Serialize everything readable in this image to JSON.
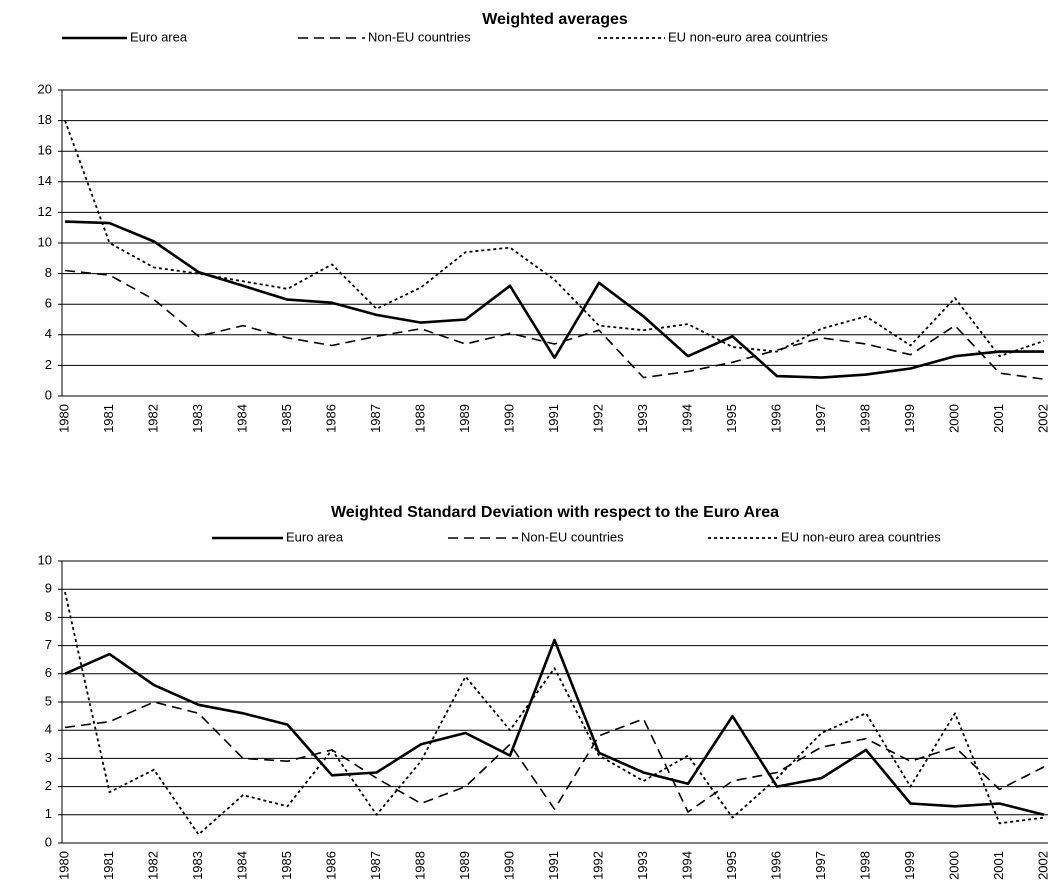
{
  "chart_data": [
    {
      "type": "line",
      "title": "Weighted averages",
      "categories": [
        "1980",
        "1981",
        "1982",
        "1983",
        "1984",
        "1985",
        "1986",
        "1987",
        "1988",
        "1989",
        "1990",
        "1991",
        "1992",
        "1993",
        "1994",
        "1995",
        "1996",
        "1997",
        "1998",
        "1999",
        "2000",
        "2001",
        "2002"
      ],
      "ylim": [
        0,
        20
      ],
      "yticks": [
        0,
        2,
        4,
        6,
        8,
        10,
        12,
        14,
        16,
        18,
        20
      ],
      "grid": true,
      "series": [
        {
          "name": "Euro area",
          "color": "#000000",
          "dash": "solid",
          "values": [
            11.4,
            11.3,
            10.1,
            8.1,
            7.2,
            6.3,
            6.1,
            5.3,
            4.8,
            5.0,
            7.2,
            2.5,
            7.4,
            5.2,
            2.6,
            3.9,
            1.3,
            1.2,
            1.4,
            1.8,
            2.6,
            2.9,
            2.9
          ]
        },
        {
          "name": "Non-EU countries",
          "color": "#000000",
          "dash": "dashed",
          "values": [
            8.2,
            7.9,
            6.3,
            3.9,
            4.6,
            3.8,
            3.3,
            3.9,
            4.4,
            3.4,
            4.1,
            3.4,
            4.3,
            1.2,
            1.6,
            2.2,
            3.0,
            3.8,
            3.4,
            2.7,
            4.6,
            1.5,
            1.1
          ]
        },
        {
          "name": "EU non-euro area countries",
          "color": "#000000",
          "dash": "dotted",
          "values": [
            18.0,
            10.0,
            8.4,
            8.0,
            7.5,
            7.0,
            8.6,
            5.7,
            7.1,
            9.4,
            9.7,
            7.6,
            4.6,
            4.3,
            4.7,
            3.2,
            2.9,
            4.4,
            5.2,
            3.3,
            6.4,
            2.6,
            3.6
          ]
        }
      ]
    },
    {
      "type": "line",
      "title": "Weighted Standard Deviation with respect to the Euro Area",
      "categories": [
        "1980",
        "1981",
        "1982",
        "1983",
        "1984",
        "1985",
        "1986",
        "1987",
        "1988",
        "1989",
        "1990",
        "1991",
        "1992",
        "1993",
        "1994",
        "1995",
        "1996",
        "1997",
        "1998",
        "1999",
        "2000",
        "2001",
        "2002"
      ],
      "ylim": [
        0,
        10
      ],
      "yticks": [
        0,
        1,
        2,
        3,
        4,
        5,
        6,
        7,
        8,
        9,
        10
      ],
      "grid": true,
      "series": [
        {
          "name": "Euro area",
          "color": "#000000",
          "dash": "solid",
          "values": [
            6.0,
            6.7,
            5.6,
            4.9,
            4.6,
            4.2,
            2.4,
            2.5,
            3.5,
            3.9,
            3.1,
            7.2,
            3.2,
            2.5,
            2.1,
            4.5,
            2.0,
            2.3,
            3.3,
            1.4,
            1.3,
            1.4,
            1.0
          ]
        },
        {
          "name": "Non-EU countries",
          "color": "#000000",
          "dash": "dashed",
          "values": [
            4.1,
            4.3,
            5.0,
            4.6,
            3.0,
            2.9,
            3.3,
            2.3,
            1.4,
            2.0,
            3.5,
            1.2,
            3.8,
            4.4,
            1.1,
            2.2,
            2.5,
            3.4,
            3.7,
            2.9,
            3.4,
            1.9,
            2.7
          ]
        },
        {
          "name": "EU non-euro area countries",
          "color": "#000000",
          "dash": "dotted",
          "values": [
            8.9,
            1.8,
            2.6,
            0.3,
            1.7,
            1.3,
            3.3,
            1.0,
            2.9,
            5.9,
            4.0,
            6.2,
            3.1,
            2.2,
            3.1,
            0.9,
            2.3,
            3.9,
            4.6,
            2.0,
            4.6,
            0.7,
            0.9
          ]
        }
      ]
    }
  ]
}
